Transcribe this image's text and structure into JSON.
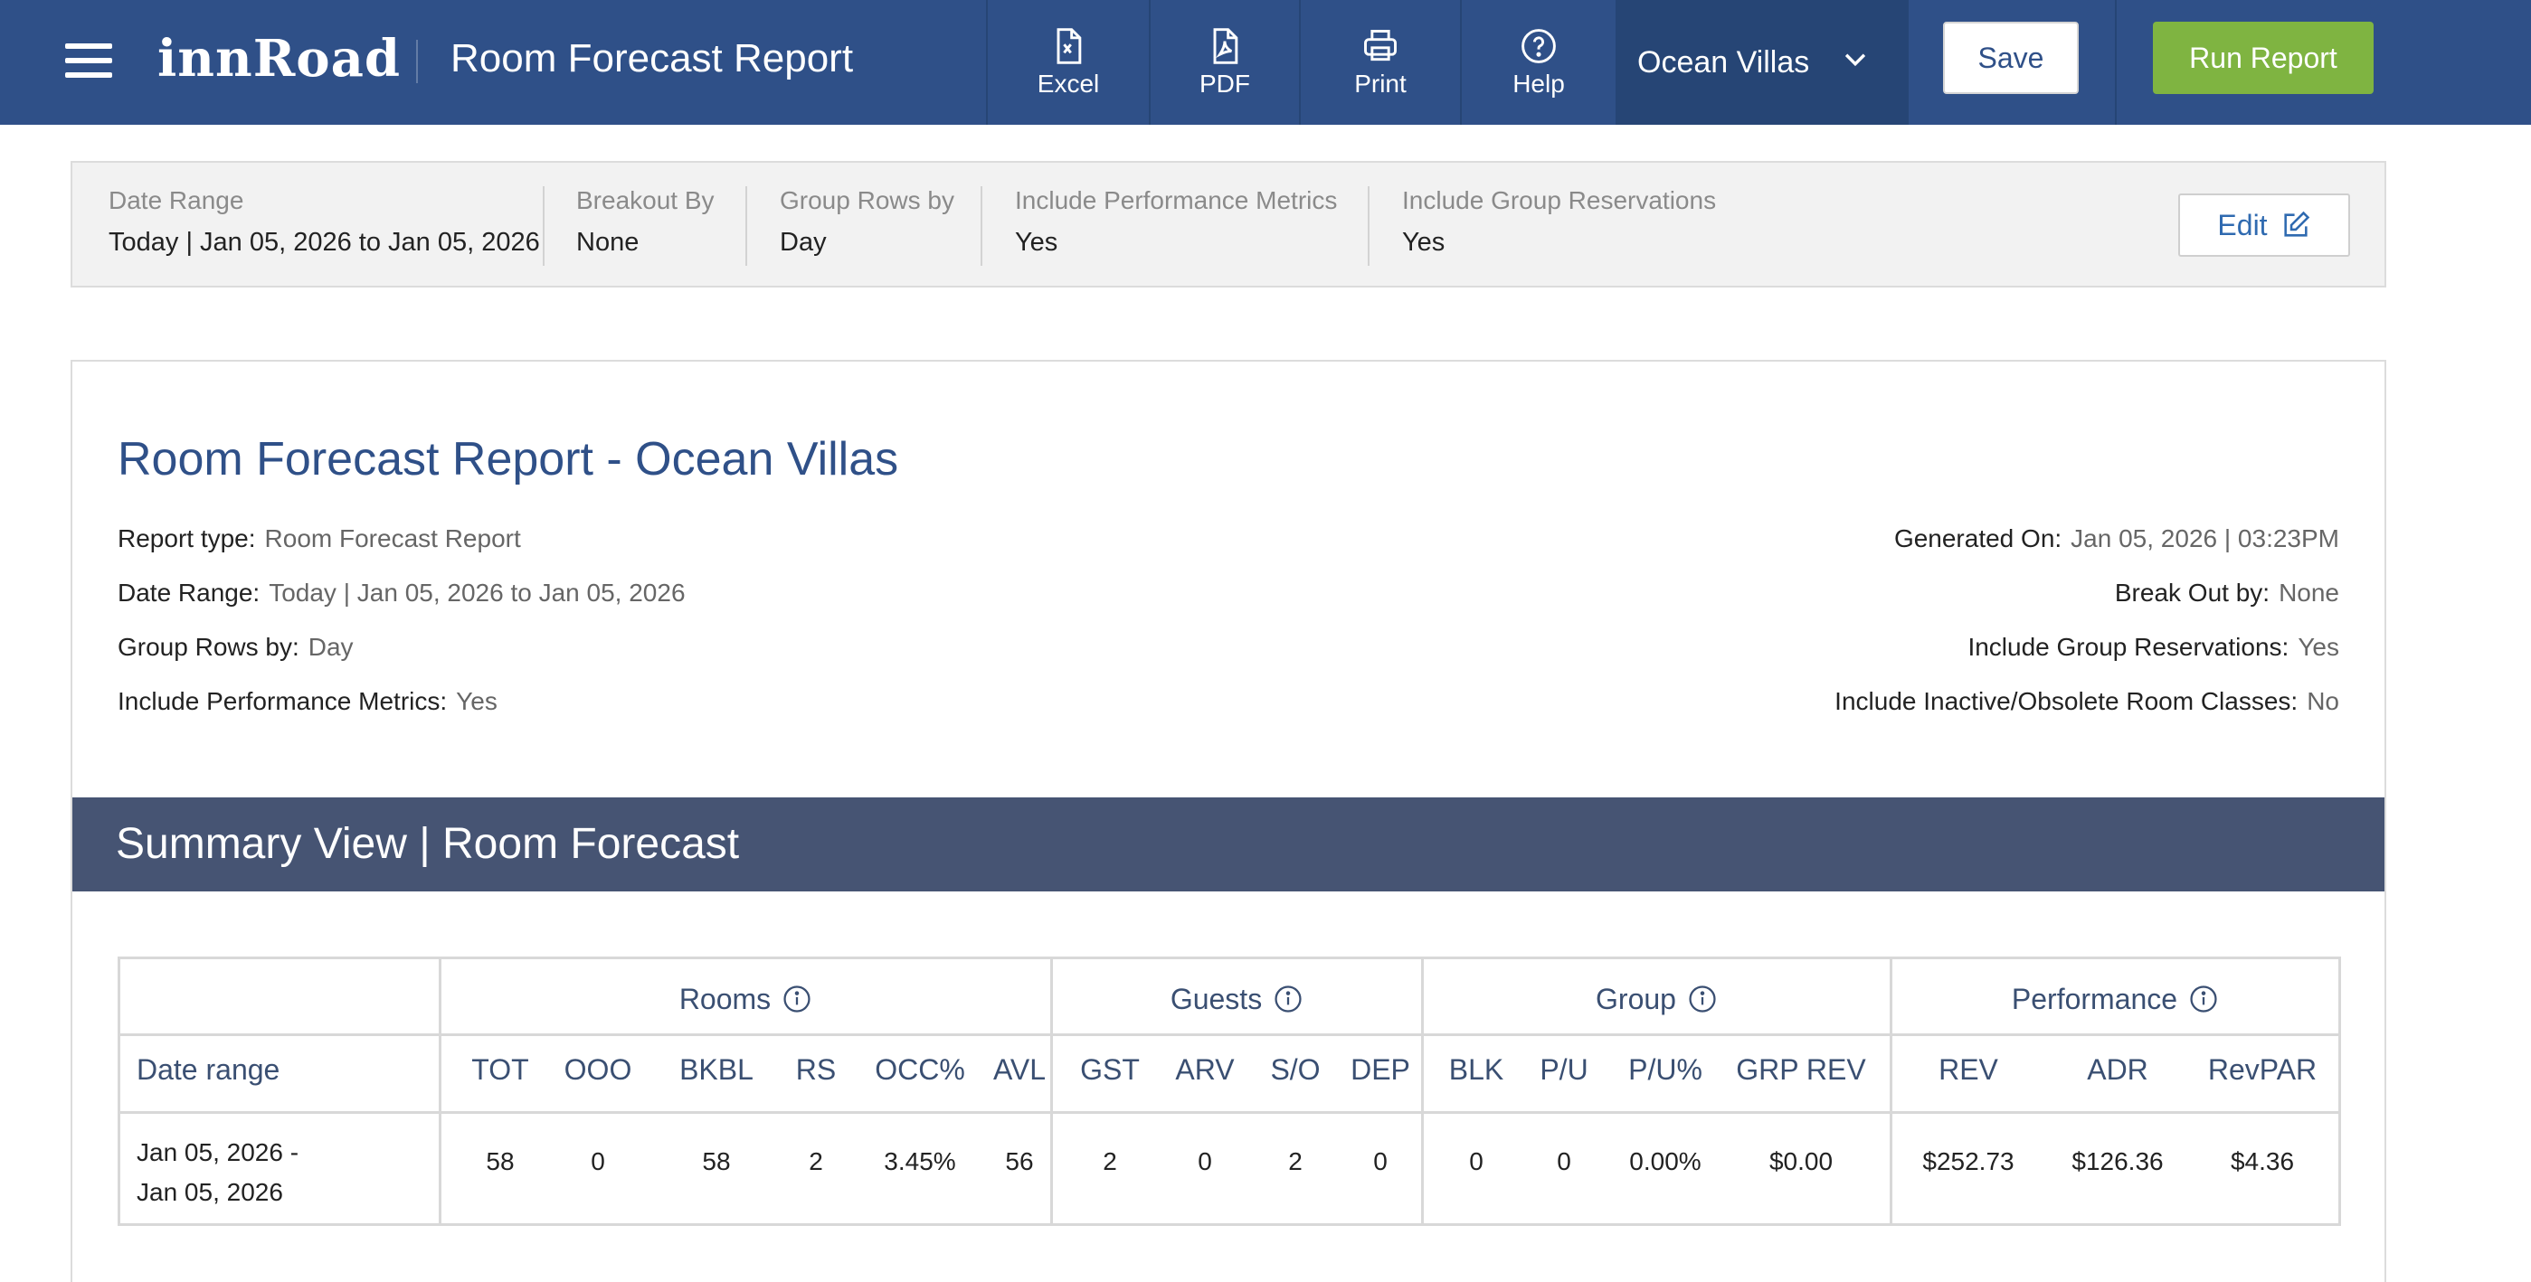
{
  "header": {
    "logo_text": "innRoad",
    "page_title": "Room Forecast Report",
    "tools": {
      "excel": "Excel",
      "pdf": "PDF",
      "print": "Print",
      "help": "Help"
    },
    "property_selected": "Ocean Villas",
    "save_label": "Save",
    "run_label": "Run Report",
    "colors": {
      "bar": "#2f5088",
      "run_button": "#7fb441"
    }
  },
  "criteria": {
    "date_range": {
      "label": "Date Range",
      "value": "Today | Jan 05, 2026 to Jan 05, 2026"
    },
    "breakout_by": {
      "label": "Breakout By",
      "value": "None"
    },
    "group_rows_by": {
      "label": "Group Rows by",
      "value": "Day"
    },
    "include_performance": {
      "label": "Include Performance Metrics",
      "value": "Yes"
    },
    "include_group_res": {
      "label": "Include Group Reservations",
      "value": "Yes"
    },
    "edit_label": "Edit"
  },
  "report": {
    "title": "Room Forecast Report - Ocean Villas",
    "meta_left": [
      {
        "key": "Report type:",
        "value": "Room Forecast Report"
      },
      {
        "key": "Date Range:",
        "value": "Today | Jan 05, 2026 to Jan 05, 2026"
      },
      {
        "key": "Group Rows by:",
        "value": "Day"
      },
      {
        "key": "Include Performance Metrics:",
        "value": "Yes"
      }
    ],
    "meta_right": [
      {
        "key": "Generated On:",
        "value": "Jan 05, 2026 | 03:23PM"
      },
      {
        "key": "Break Out by:",
        "value": "None"
      },
      {
        "key": "Include Group Reservations:",
        "value": "Yes"
      },
      {
        "key": "Include Inactive/Obsolete Room Classes:",
        "value": "No"
      }
    ],
    "summary_title": "Summary View | Room Forecast"
  },
  "table": {
    "groups": {
      "rooms": "Rooms",
      "guests": "Guests",
      "group": "Group",
      "performance": "Performance"
    },
    "date_col_header": "Date range",
    "columns": [
      "TOT",
      "OOO",
      "BKBL",
      "RS",
      "OCC%",
      "AVL",
      "GST",
      "ARV",
      "S/O",
      "DEP",
      "BLK",
      "P/U",
      "P/U%",
      "GRP REV",
      "REV",
      "ADR",
      "RevPAR"
    ],
    "rows": [
      {
        "date_line1": "Jan 05, 2026 -",
        "date_line2": "Jan 05, 2026",
        "values": [
          "58",
          "0",
          "58",
          "2",
          "3.45%",
          "56",
          "2",
          "0",
          "2",
          "0",
          "0",
          "0",
          "0.00%",
          "$0.00",
          "$252.73",
          "$126.36",
          "$4.36"
        ]
      }
    ]
  }
}
